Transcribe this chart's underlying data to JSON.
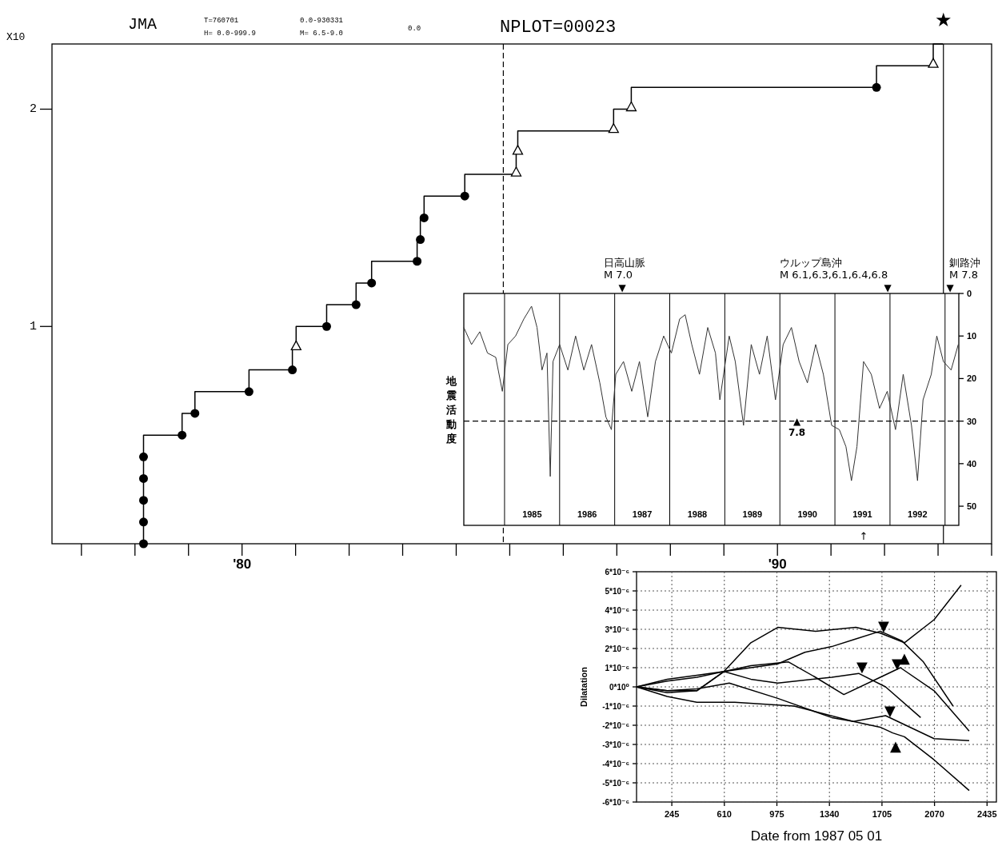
{
  "chart_data": [
    {
      "type": "step",
      "title": "JMA",
      "annotations": [
        "T=760701",
        "0.0-930331",
        "H=  0.0-999.9",
        "M= 6.5-9.0",
        "0.0",
        "NPLOT=00023",
        "X10"
      ],
      "xlim": [
        1976.45,
        1994.0
      ],
      "xticks": [
        {
          "value": 1977,
          "label": null
        },
        {
          "value": 1978,
          "label": null
        },
        {
          "value": 1979,
          "label": null
        },
        {
          "value": 1980,
          "label": "'80"
        },
        {
          "value": 1981,
          "label": null
        },
        {
          "value": 1982,
          "label": null
        },
        {
          "value": 1983,
          "label": null
        },
        {
          "value": 1984,
          "label": null
        },
        {
          "value": 1985,
          "label": null
        },
        {
          "value": 1986,
          "label": null
        },
        {
          "value": 1987,
          "label": null
        },
        {
          "value": 1988,
          "label": null
        },
        {
          "value": 1989,
          "label": null
        },
        {
          "value": 1990,
          "label": "'90"
        },
        {
          "value": 1991,
          "label": null
        },
        {
          "value": 1992,
          "label": null
        },
        {
          "value": 1993,
          "label": null
        },
        {
          "value": 1994,
          "label": null
        }
      ],
      "ylim": [
        0,
        2.3
      ],
      "yticks": [
        1,
        2
      ],
      "grid": false,
      "ref_lines": [
        {
          "axis": "x",
          "value": 1984.88,
          "line_style": "dashed"
        },
        {
          "axis": "x",
          "value": 1993.1,
          "label": "★"
        }
      ],
      "series": [
        {
          "color": "#000000",
          "x": [
            1978.16,
            1978.16,
            1978.16,
            1978.16,
            1978.16,
            1978.88,
            1979.12,
            1980.13,
            1980.94,
            1981.01,
            1981.58,
            1982.13,
            1982.42,
            1983.27,
            1983.33,
            1983.4,
            1984.16,
            1985.12,
            1985.15,
            1986.94,
            1987.27,
            1991.85,
            1992.91,
            1993.09
          ],
          "values": [
            0,
            0.1,
            0.2,
            0.3,
            0.4,
            0.5,
            0.6,
            0.7,
            0.8,
            0.9,
            1.0,
            1.1,
            1.2,
            1.3,
            1.4,
            1.5,
            1.6,
            1.7,
            1.8,
            1.9,
            2.0,
            2.1,
            2.2,
            2.3
          ]
        },
        {
          "type": "scatter",
          "marker": "circle",
          "color": "#000000",
          "x": [
            1978.16,
            1978.16,
            1978.16,
            1978.16,
            1978.16,
            1978.88,
            1979.12,
            1980.13,
            1980.94,
            1981.58,
            1982.13,
            1982.42,
            1983.27,
            1983.33,
            1983.4,
            1984.16,
            1991.85
          ],
          "values": [
            0,
            0.1,
            0.2,
            0.3,
            0.4,
            0.5,
            0.6,
            0.7,
            0.8,
            1.0,
            1.1,
            1.2,
            1.3,
            1.4,
            1.5,
            1.6,
            2.1
          ]
        },
        {
          "type": "scatter",
          "marker": "triangle",
          "color": "#000000",
          "x": [
            1981.01,
            1985.12,
            1985.15,
            1986.94,
            1987.27,
            1992.91
          ],
          "values": [
            0.9,
            1.7,
            1.8,
            1.9,
            2.0,
            2.2
          ]
        }
      ]
    },
    {
      "type": "line",
      "ylabel": "地震活動度",
      "xlim": [
        1984.26,
        1993.25
      ],
      "xticks": [
        {
          "value": 1985,
          "label": null
        },
        {
          "value": 1985.5,
          "label": "1985"
        },
        {
          "value": 1986,
          "label": null
        },
        {
          "value": 1986.5,
          "label": "1986"
        },
        {
          "value": 1987,
          "label": null
        },
        {
          "value": 1987.5,
          "label": "1987"
        },
        {
          "value": 1988,
          "label": null
        },
        {
          "value": 1988.5,
          "label": "1988"
        },
        {
          "value": 1989,
          "label": null
        },
        {
          "value": 1989.5,
          "label": "1989"
        },
        {
          "value": 1990,
          "label": null
        },
        {
          "value": 1990.5,
          "label": "1990"
        },
        {
          "value": 1991,
          "label": null
        },
        {
          "value": 1991.5,
          "label": "1991"
        },
        {
          "value": 1992,
          "label": null
        },
        {
          "value": 1992.5,
          "label": "1992"
        },
        {
          "value": 1993,
          "label": null
        }
      ],
      "ylim": [
        54.5,
        0
      ],
      "yticks": [
        0,
        10,
        20,
        30,
        40,
        50
      ],
      "grid": "x",
      "ref_lines": [
        {
          "axis": "y",
          "value": 30,
          "line_style": "dashed"
        }
      ],
      "annotations": [
        "↑",
        "日高山脈\nM 7.0",
        "▼",
        "ウルップ島沖\nM 6.1,6.3,6.1,6.4,6.8",
        "▼",
        "釧路沖\nM 7.8",
        "▼",
        {
          "text": "▲\n7.8",
          "x": 1990.31,
          "y": 30
        }
      ],
      "series": [
        {
          "color": "#333333",
          "x": [
            1984.26,
            1984.4,
            1984.55,
            1984.69,
            1984.84,
            1984.96,
            1985.06,
            1985.2,
            1985.35,
            1985.49,
            1985.59,
            1985.68,
            1985.77,
            1985.83,
            1985.88,
            1986.0,
            1986.15,
            1986.29,
            1986.44,
            1986.58,
            1986.73,
            1986.84,
            1986.94,
            1987.02,
            1987.16,
            1987.31,
            1987.45,
            1987.6,
            1987.74,
            1987.89,
            1988.03,
            1988.18,
            1988.28,
            1988.4,
            1988.54,
            1988.69,
            1988.83,
            1988.91,
            1989.08,
            1989.19,
            1989.34,
            1989.48,
            1989.63,
            1989.77,
            1989.92,
            1990.06,
            1990.21,
            1990.35,
            1990.5,
            1990.65,
            1990.79,
            1990.94,
            1991.08,
            1991.2,
            1991.3,
            1991.4,
            1991.52,
            1991.66,
            1991.81,
            1991.95,
            1992.1,
            1992.24,
            1992.39,
            1992.5,
            1992.6,
            1992.75,
            1992.85,
            1992.97,
            1993.11,
            1993.24
          ],
          "values": [
            8,
            12,
            9,
            14,
            15,
            23,
            12,
            10,
            6,
            3,
            8,
            18,
            14,
            43,
            16,
            12,
            18,
            10,
            18,
            12,
            21,
            29,
            32,
            19,
            16,
            23,
            16,
            29,
            16,
            10,
            14,
            6,
            5,
            12,
            19,
            8,
            14,
            25,
            10,
            16,
            31,
            12,
            19,
            10,
            25,
            12,
            8,
            16,
            21,
            12,
            19,
            31,
            32,
            36,
            44,
            36,
            16,
            19,
            27,
            23,
            32,
            19,
            31,
            44,
            25,
            19,
            10,
            16,
            18,
            12
          ]
        }
      ]
    },
    {
      "type": "line",
      "xlabel": "Date from 1987 05 01",
      "ylabel": "Dilatation",
      "xlim": [
        0,
        2500
      ],
      "xticks": [
        245,
        610,
        975,
        1340,
        1705,
        2070,
        2435
      ],
      "ylim": [
        -6e-06,
        6e-06
      ],
      "yticks": [
        {
          "value": 6e-06,
          "label": "6*10⁻⁶"
        },
        {
          "value": 5e-06,
          "label": "5*10⁻⁶"
        },
        {
          "value": 4e-06,
          "label": "4*10⁻⁶"
        },
        {
          "value": 3e-06,
          "label": "3*10⁻⁶"
        },
        {
          "value": 2e-06,
          "label": "2*10⁻⁶"
        },
        {
          "value": 1e-06,
          "label": "1*10⁻⁶"
        },
        {
          "value": 0,
          "label": "0*10⁰"
        },
        {
          "value": -1e-06,
          "label": "-1*10⁻⁶"
        },
        {
          "value": -2e-06,
          "label": "-2*10⁻⁶"
        },
        {
          "value": -3e-06,
          "label": "-3*10⁻⁶"
        },
        {
          "value": -4e-06,
          "label": "-4*10⁻⁶"
        },
        {
          "value": -5e-06,
          "label": "-5*10⁻⁶"
        },
        {
          "value": -6e-06,
          "label": "-6*10⁻⁶"
        }
      ],
      "grid": true,
      "annotations": [
        "▼",
        "▲",
        "▼",
        "▼",
        "▼",
        "▲"
      ],
      "series": [
        {
          "color": "#000000",
          "x": [
            0,
            213,
            419,
            607,
            794,
            981,
            1243,
            1524,
            1693,
            1861,
            2067,
            2255
          ],
          "values": [
            0,
            -2e-07,
            -2e-07,
            8e-07,
            2.3e-06,
            3.1e-06,
            2.9e-06,
            3.1e-06,
            2.8e-06,
            2.3e-06,
            3.5e-06,
            5.3e-06
          ]
        },
        {
          "color": "#000000",
          "x": [
            0,
            213,
            419,
            607,
            794,
            981,
            1169,
            1356,
            1524,
            1693,
            1843,
            1993,
            2199
          ],
          "values": [
            0,
            4e-07,
            6e-07,
            8e-07,
            1e-06,
            1.2e-06,
            1.8e-06,
            2.1e-06,
            2.5e-06,
            2.9e-06,
            2.4e-06,
            1.3e-06,
            -1e-06
          ]
        },
        {
          "color": "#000000",
          "x": [
            0,
            213,
            419,
            607,
            794,
            1056,
            1243,
            1440,
            1693,
            1833,
            2067,
            2311
          ],
          "values": [
            0,
            3e-07,
            5e-07,
            8e-07,
            1.1e-06,
            1.3e-06,
            5e-07,
            -4e-07,
            5e-07,
            1e-06,
            -2e-07,
            -2.3e-06
          ]
        },
        {
          "color": "#000000",
          "x": [
            0,
            213,
            419,
            607,
            794,
            981,
            1356,
            1543,
            1730,
            1974
          ],
          "values": [
            0,
            -3e-07,
            -2e-07,
            8e-07,
            4e-07,
            2e-07,
            5e-07,
            7e-07,
            0,
            -1.6e-06
          ]
        },
        {
          "color": "#000000",
          "x": [
            0,
            213,
            419,
            644,
            981,
            1356,
            1506,
            1730,
            2067,
            2311
          ],
          "values": [
            0,
            -2e-07,
            -1e-07,
            2e-07,
            -6e-07,
            -1.6e-06,
            -1.8e-06,
            -1.5e-06,
            -2.7e-06,
            -2.8e-06
          ]
        },
        {
          "color": "#000000",
          "x": [
            0,
            213,
            419,
            682,
            1094,
            1506,
            1693,
            1780,
            1861,
            2067,
            2311
          ],
          "values": [
            0,
            -5e-07,
            -8e-07,
            -8e-07,
            -1e-06,
            -1.8e-06,
            -2.1e-06,
            -2.4e-06,
            -2.6e-06,
            -3.8e-06,
            -5.4e-06
          ]
        }
      ]
    }
  ]
}
